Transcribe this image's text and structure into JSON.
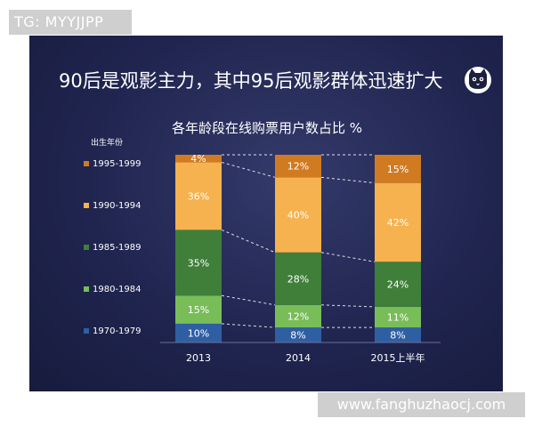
{
  "watermark_top": "TG: MYYJJPP",
  "watermark_bottom": "www.fanghuzhaocj.com",
  "slide_title": "90后是观影主力，其中95后观影群体迅速扩大",
  "logo_icon": "cat-face-icon",
  "chart_data": {
    "type": "bar",
    "stacked": true,
    "title": "各年龄段在线购票用户数占比 %",
    "legend_title": "出生年份",
    "legend_placement": "left",
    "categories": [
      "2013",
      "2014",
      "2015上半年"
    ],
    "series": [
      {
        "name": "1970-1979",
        "color": "#2f5fa3",
        "values": [
          10,
          8,
          8
        ]
      },
      {
        "name": "1980-1984",
        "color": "#79bd59",
        "values": [
          15,
          12,
          11
        ]
      },
      {
        "name": "1985-1989",
        "color": "#3f7f3a",
        "values": [
          35,
          28,
          24
        ]
      },
      {
        "name": "1990-1994",
        "color": "#f6b24f",
        "values": [
          36,
          40,
          42
        ]
      },
      {
        "name": "1995-1999",
        "color": "#d07b22",
        "values": [
          4,
          12,
          15
        ]
      }
    ],
    "ylim": [
      0,
      100
    ],
    "grid": false
  }
}
